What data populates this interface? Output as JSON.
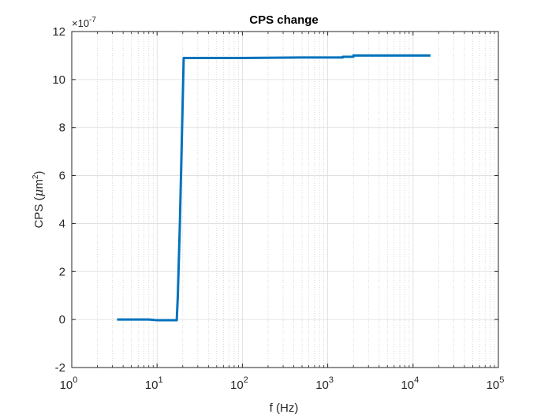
{
  "chart_data": {
    "type": "line",
    "title": "CPS change",
    "xlabel": "f (Hz)",
    "ylabel_main": "CPS (",
    "ylabel_mu": "μ",
    "ylabel_unit": "m",
    "ylabel_sup": "2",
    "ylabel_close": ")",
    "xscale": "log",
    "xlim": [
      1,
      100000
    ],
    "ylim": [
      -2,
      12
    ],
    "yscale_factor_base": "×10",
    "yscale_factor_exp": "-7",
    "grid": true,
    "minor_grid": true,
    "x_ticks": [
      {
        "value": 1,
        "base": "10",
        "exp": "0"
      },
      {
        "value": 10,
        "base": "10",
        "exp": "1"
      },
      {
        "value": 100,
        "base": "10",
        "exp": "2"
      },
      {
        "value": 1000,
        "base": "10",
        "exp": "3"
      },
      {
        "value": 10000,
        "base": "10",
        "exp": "4"
      },
      {
        "value": 100000,
        "base": "10",
        "exp": "5"
      }
    ],
    "y_ticks": [
      {
        "value": -2,
        "label": "-2"
      },
      {
        "value": 0,
        "label": "0"
      },
      {
        "value": 2,
        "label": "2"
      },
      {
        "value": 4,
        "label": "4"
      },
      {
        "value": 6,
        "label": "6"
      },
      {
        "value": 8,
        "label": "8"
      },
      {
        "value": 10,
        "label": "10"
      },
      {
        "value": 12,
        "label": "12"
      }
    ],
    "series": [
      {
        "color": "#0072BD",
        "x": [
          3.4,
          6.0,
          8.0,
          10.0,
          14.0,
          17.0,
          17.5,
          18.5,
          19.5,
          20.5,
          21.0,
          30,
          100,
          500,
          1000,
          1500,
          1500,
          2000,
          2000,
          5000,
          10000,
          16000
        ],
        "y": [
          0.0,
          0.0,
          0.0,
          -0.03,
          -0.03,
          -0.03,
          1.0,
          4.0,
          7.5,
          10.9,
          10.9,
          10.9,
          10.9,
          10.92,
          10.92,
          10.92,
          10.95,
          10.95,
          11.0,
          11.0,
          11.0,
          11.0
        ]
      }
    ]
  }
}
